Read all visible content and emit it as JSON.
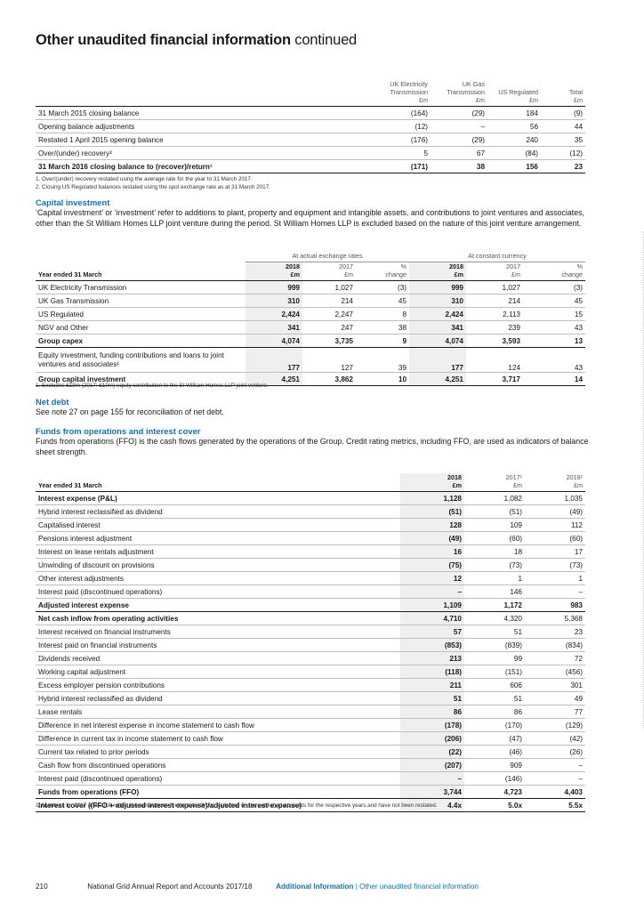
{
  "page": {
    "title_bold": "Other unaudited financial information",
    "title_light": "continued"
  },
  "recovery_table": {
    "col_headers": [
      [
        "UK Electricity",
        "Transmission",
        "£m"
      ],
      [
        "UK Gas",
        "Transmission",
        "£m"
      ],
      [
        "US Regulated",
        "£m"
      ],
      [
        "Total",
        "£m"
      ]
    ],
    "rows": [
      {
        "label": "31 March 2015 closing balance",
        "values": [
          "(164)",
          "(29)",
          "184",
          "(9)"
        ]
      },
      {
        "label": "Opening balance adjustments",
        "values": [
          "(12)",
          "–",
          "56",
          "44"
        ]
      },
      {
        "label": "Restated 1 April 2015 opening balance",
        "values": [
          "(176)",
          "(29)",
          "240",
          "35"
        ]
      },
      {
        "label": "Over/(under) recovery²",
        "values": [
          "5",
          "67",
          "(84)",
          "(12)"
        ]
      },
      {
        "label": "31 March 2016 closing balance to (recover)/return¹",
        "values": [
          "(171)",
          "38",
          "156",
          "23"
        ],
        "strong": true
      }
    ],
    "notes": [
      "1. Over/(under) recovery restated using the average rate for the year to 31 March 2017.",
      "2. Closing US Regulated balances restated using the spot exchange rate as at 31 March 2017."
    ]
  },
  "capital_investment": {
    "heading": "Capital investment",
    "text": "‘Capital investment’ or ‘investment’ refer to additions to plant, property and equipment and intangible assets, and contributions to joint ventures and associates, other than the St William Homes LLP joint venture during the period. St William Homes LLP is excluded based on the nature of this joint venture arrangement.",
    "group_actual": "At actual exchange rates",
    "group_constant": "At constant currency",
    "row_header": "Year ended 31 March",
    "col_headers": [
      [
        "2018",
        "£m"
      ],
      [
        "2017",
        "£m"
      ],
      [
        "%",
        "change"
      ],
      [
        "2018",
        "£m"
      ],
      [
        "2017",
        "£m"
      ],
      [
        "%",
        "change"
      ]
    ],
    "rows": [
      {
        "label": "UK Electricity Transmission",
        "values": [
          "999",
          "1,027",
          "(3)",
          "999",
          "1,027",
          "(3)"
        ]
      },
      {
        "label": "UK Gas Transmission",
        "values": [
          "310",
          "214",
          "45",
          "310",
          "214",
          "45"
        ]
      },
      {
        "label": "US Regulated",
        "values": [
          "2,424",
          "2,247",
          "8",
          "2,424",
          "2,113",
          "15"
        ]
      },
      {
        "label": "NGV and Other",
        "values": [
          "341",
          "247",
          "38",
          "341",
          "239",
          "43"
        ]
      },
      {
        "label": "Group capex",
        "values": [
          "4,074",
          "3,735",
          "9",
          "4,074",
          "3,593",
          "13"
        ],
        "strong": true
      },
      {
        "label": "Equity investment, funding contributions and loans to joint ventures and associates¹",
        "values": [
          "177",
          "127",
          "39",
          "177",
          "124",
          "43"
        ],
        "tall": true
      },
      {
        "label": "Group capital investment",
        "values": [
          "4,251",
          "3,862",
          "10",
          "4,251",
          "3,717",
          "14"
        ],
        "strong": true
      }
    ],
    "notes": [
      "1. Excludes £19m (2017: £10m) equity contribution to the St William Homes LLP joint venture."
    ]
  },
  "net_debt": {
    "heading": "Net debt",
    "text": "See note 27 on page 155 for reconciliation of net debt."
  },
  "ffo": {
    "heading": "Funds from operations and interest cover",
    "text": "Funds from operations (FFO) is the cash flows generated by the operations of the Group. Credit rating metrics, including FFO, are used as indicators of balance sheet strength.",
    "row_header": "Year ended 31 March",
    "col_headers": [
      [
        "2018",
        "£m"
      ],
      [
        "2017¹",
        "£m"
      ],
      [
        "2016¹",
        "£m"
      ]
    ],
    "rows": [
      {
        "label": "Interest expense (P&L)",
        "values": [
          "1,128",
          "1,082",
          "1,035"
        ],
        "bold_label": true
      },
      {
        "label": "Hybrid interest reclassified as dividend",
        "values": [
          "(51)",
          "(51)",
          "(49)"
        ]
      },
      {
        "label": "Capitalised interest",
        "values": [
          "128",
          "109",
          "112"
        ]
      },
      {
        "label": "Pensions interest adjustment",
        "values": [
          "(49)",
          "(60)",
          "(60)"
        ]
      },
      {
        "label": "Interest on lease rentals adjustment",
        "values": [
          "16",
          "18",
          "17"
        ]
      },
      {
        "label": "Unwinding of discount on provisions",
        "values": [
          "(75)",
          "(73)",
          "(73)"
        ]
      },
      {
        "label": "Other interest adjustments",
        "values": [
          "12",
          "1",
          "1"
        ]
      },
      {
        "label": "Interest paid (discontinued operations)",
        "values": [
          "–",
          "146",
          "–"
        ]
      },
      {
        "label": "Adjusted interest expense",
        "values": [
          "1,109",
          "1,172",
          "983"
        ],
        "strong": true
      },
      {
        "label": "Net cash inflow from operating activities",
        "values": [
          "4,710",
          "4,320",
          "5,368"
        ],
        "bold_label": true
      },
      {
        "label": "Interest received on financial instruments",
        "values": [
          "57",
          "51",
          "23"
        ]
      },
      {
        "label": "Interest paid on financial instruments",
        "values": [
          "(853)",
          "(839)",
          "(834)"
        ]
      },
      {
        "label": "Dividends received",
        "values": [
          "213",
          "99",
          "72"
        ]
      },
      {
        "label": "Working capital adjustment",
        "values": [
          "(118)",
          "(151)",
          "(456)"
        ]
      },
      {
        "label": "Excess employer pension contributions",
        "values": [
          "211",
          "606",
          "301"
        ]
      },
      {
        "label": "Hybrid interest reclassified as dividend",
        "values": [
          "51",
          "51",
          "49"
        ]
      },
      {
        "label": "Lease rentals",
        "values": [
          "86",
          "86",
          "77"
        ]
      },
      {
        "label": "Difference in net interest expense in income statement to cash flow",
        "values": [
          "(178)",
          "(170)",
          "(129)"
        ]
      },
      {
        "label": "Difference in current tax in income statement to cash flow",
        "values": [
          "(206)",
          "(47)",
          "(42)"
        ]
      },
      {
        "label": "Current tax related to prior periods",
        "values": [
          "(22)",
          "(46)",
          "(26)"
        ]
      },
      {
        "label": "Cash flow from discontinued operations",
        "values": [
          "(207)",
          "909",
          "–"
        ]
      },
      {
        "label": "Interest paid (discontinued operations)",
        "values": [
          "–",
          "(146)",
          "–"
        ]
      },
      {
        "label": "Funds from operations (FFO)",
        "values": [
          "3,744",
          "4,723",
          "4,403"
        ],
        "strong": true
      },
      {
        "label": "Interest cover ((FFO + adjusted interest expense)/adjusted interest expense)",
        "values": [
          "4.4x",
          "5.0x",
          "5.5x"
        ],
        "strong": true
      }
    ],
    "notes": [
      "1. Numbers for 2017 and 2016 reflect the calculations for the total Group as based on the published accounts for the respective years and have not been restated."
    ]
  },
  "footer": {
    "page_number": "210",
    "report": "National Grid Annual Report and Accounts 2017/18",
    "section": "Additional Information",
    "separator": "|",
    "subsection": "Other unaudited financial information"
  }
}
